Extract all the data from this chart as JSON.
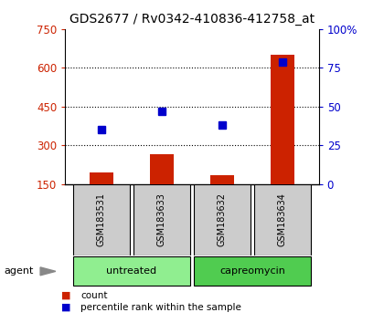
{
  "title": "GDS2677 / Rv0342-410836-412758_at",
  "samples": [
    "GSM183531",
    "GSM183633",
    "GSM183632",
    "GSM183634"
  ],
  "counts": [
    195,
    265,
    185,
    650
  ],
  "percentiles": [
    35,
    47,
    38,
    79
  ],
  "ylim_left": [
    150,
    750
  ],
  "ylim_right": [
    0,
    100
  ],
  "yticks_left": [
    150,
    300,
    450,
    600,
    750
  ],
  "yticks_right": [
    0,
    25,
    50,
    75,
    100
  ],
  "bar_color": "#cc2200",
  "dot_color": "#0000cc",
  "bar_width": 0.4,
  "groups": [
    {
      "label": "untreated",
      "samples": [
        0,
        1
      ],
      "color": "#90ee90"
    },
    {
      "label": "capreomycin",
      "samples": [
        2,
        3
      ],
      "color": "#50cc50"
    }
  ],
  "agent_label": "agent",
  "legend_count": "count",
  "legend_percentile": "percentile rank within the sample",
  "sample_box_color": "#cccccc",
  "title_fontsize": 10,
  "axis_label_color_left": "#cc2200",
  "axis_label_color_right": "#0000cc",
  "dot_size": 6,
  "grid_dotted_vals": [
    300,
    450,
    600
  ]
}
